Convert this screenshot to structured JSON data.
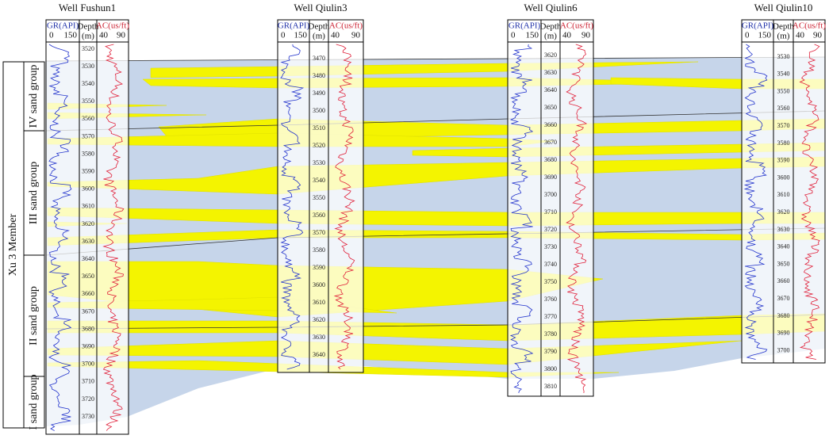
{
  "wells": [
    {
      "name": "Well Fushun1",
      "depths": [
        3520,
        3530,
        3540,
        3550,
        3560,
        3570,
        3580,
        3590,
        3600,
        3610,
        3620,
        3630,
        3640,
        3650,
        3660,
        3670,
        3680,
        3690,
        3700,
        3710,
        3720,
        3730
      ]
    },
    {
      "name": "Well Qiulin3",
      "depths": [
        3470,
        3480,
        3490,
        3500,
        3510,
        3520,
        3530,
        3540,
        3550,
        3560,
        3570,
        3580,
        3590,
        3600,
        3610,
        3620,
        3630,
        3640
      ]
    },
    {
      "name": "Well Qiulin6",
      "depths": [
        3620,
        3630,
        3640,
        3650,
        3660,
        3670,
        3680,
        3690,
        3700,
        3710,
        3720,
        3730,
        3740,
        3750,
        3760,
        3770,
        3780,
        3790,
        3800,
        3810
      ]
    },
    {
      "name": "Well Qiulin10",
      "depths": [
        3530,
        3540,
        3550,
        3560,
        3570,
        3580,
        3590,
        3600,
        3610,
        3620,
        3630,
        3640,
        3650,
        3660,
        3670,
        3680,
        3690,
        3700
      ]
    }
  ],
  "log_header": {
    "gr": "GR(API)",
    "gr_min": 0,
    "gr_max": 150,
    "depth": "Depth",
    "depth_unit": "(m)",
    "ac": "AC(us/ft)",
    "ac_min": 40,
    "ac_max": 90
  },
  "member": "Xu 3 Member",
  "sand_groups": [
    "IV sand group",
    "III sand group",
    "II sand group",
    "I sand group"
  ]
}
